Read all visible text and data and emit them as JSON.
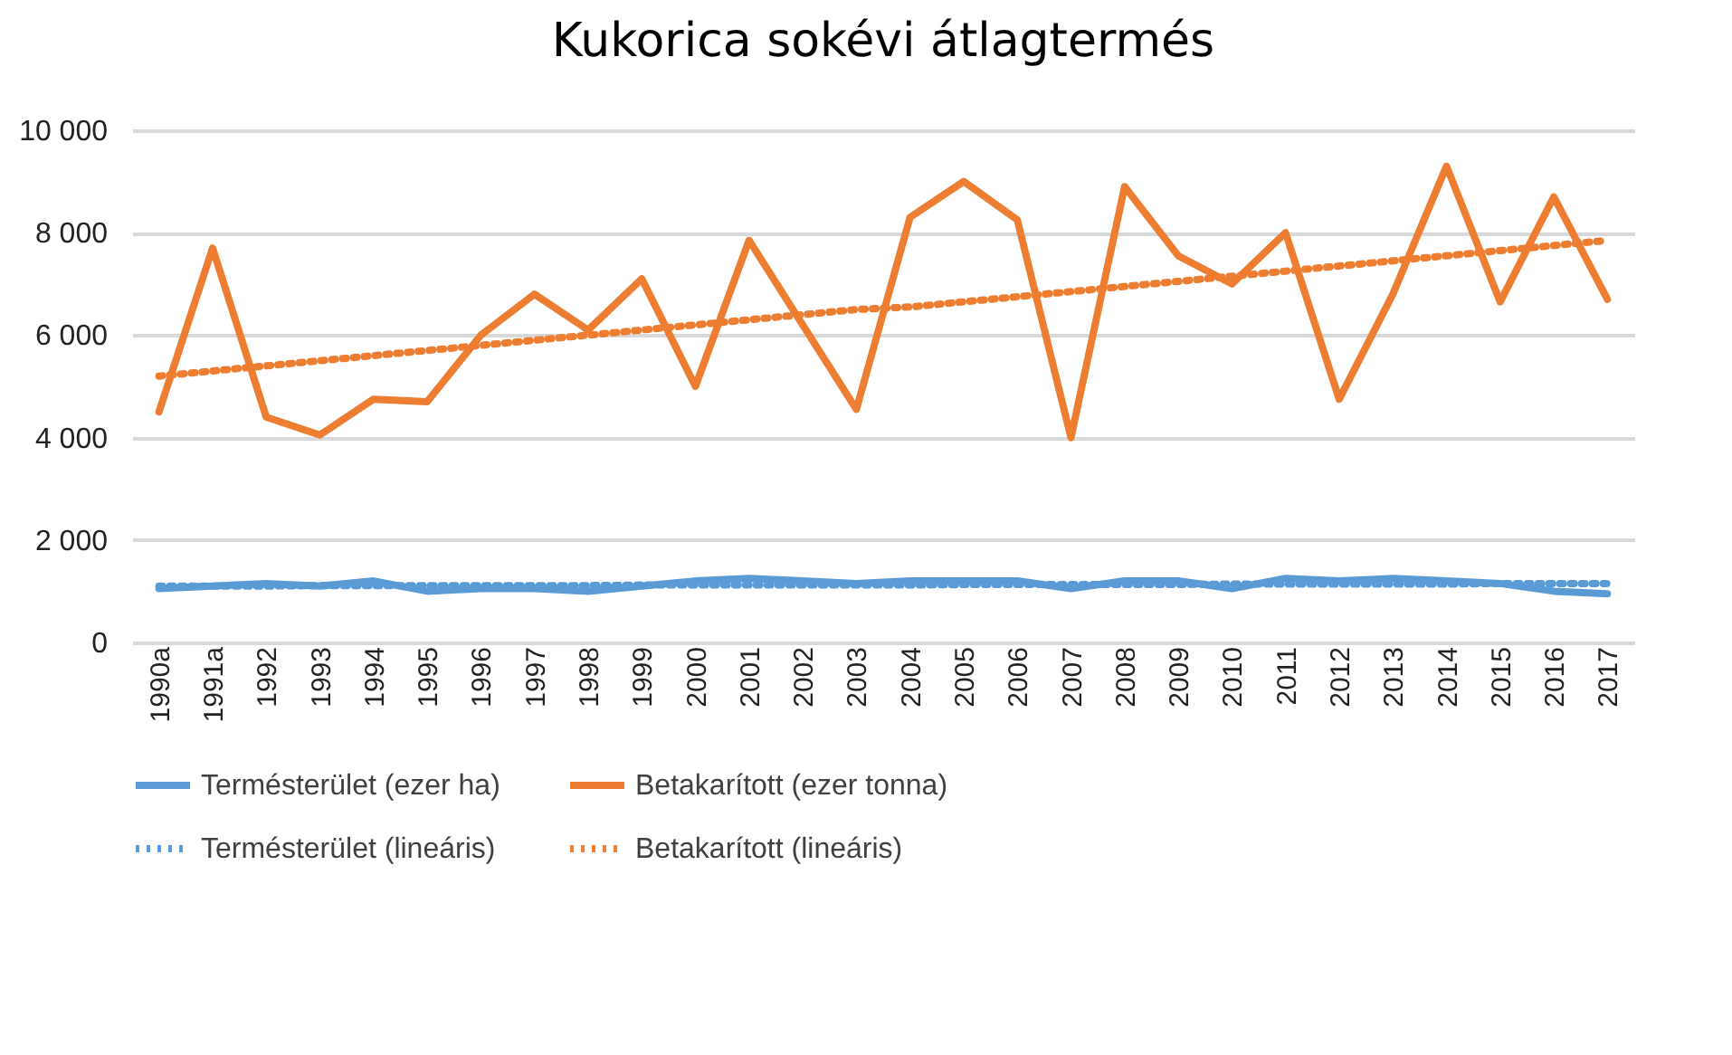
{
  "chart_data": {
    "type": "line",
    "title": "Kukorica sokévi átlagtermés",
    "categories": [
      "1990a",
      "1991a",
      "1992",
      "1993",
      "1994",
      "1995",
      "1996",
      "1997",
      "1998",
      "1999",
      "2000",
      "2001",
      "2002",
      "2003",
      "2004",
      "2005",
      "2006",
      "2007",
      "2008",
      "2009",
      "2010",
      "2011",
      "2012",
      "2013",
      "2014",
      "2015",
      "2016",
      "2017"
    ],
    "series": [
      {
        "name": "Termésterület (ezer ha)",
        "color": "#5b9bd5",
        "line_style": "solid",
        "values": [
          1050,
          1100,
          1150,
          1100,
          1200,
          1000,
          1050,
          1050,
          1000,
          1100,
          1200,
          1250,
          1200,
          1150,
          1200,
          1200,
          1200,
          1050,
          1200,
          1200,
          1050,
          1250,
          1200,
          1250,
          1200,
          1150,
          1000,
          950
        ]
      },
      {
        "name": "Betakarított (ezer tonna)",
        "color": "#ed7d31",
        "line_style": "solid",
        "values": [
          4500,
          7700,
          4400,
          4050,
          4750,
          4700,
          6000,
          6800,
          6100,
          7100,
          5000,
          7850,
          6200,
          4550,
          8300,
          9000,
          8250,
          4000,
          8900,
          7550,
          7000,
          8000,
          4750,
          6800,
          9300,
          6650,
          8700,
          6700
        ]
      },
      {
        "name": "Termésterület (lineáris)",
        "color": "#5b9bd5",
        "line_style": "dotted",
        "values": [
          1100,
          1100,
          1100,
          1110,
          1110,
          1110,
          1110,
          1110,
          1110,
          1120,
          1120,
          1120,
          1120,
          1120,
          1120,
          1130,
          1130,
          1130,
          1130,
          1130,
          1140,
          1140,
          1140,
          1140,
          1140,
          1150,
          1150,
          1150
        ]
      },
      {
        "name": "Betakarított (lineáris)",
        "color": "#ed7d31",
        "line_style": "dotted",
        "values": [
          5200,
          5300,
          5400,
          5500,
          5600,
          5700,
          5800,
          5900,
          6000,
          6100,
          6200,
          6300,
          6400,
          6500,
          6550,
          6650,
          6750,
          6850,
          6950,
          7050,
          7150,
          7250,
          7350,
          7450,
          7550,
          7650,
          7750,
          7850
        ]
      }
    ],
    "ylim": [
      0,
      10000
    ],
    "yticks": [
      0,
      {
        "value": 2000,
        "label": "2 000"
      },
      {
        "value": 4000,
        "label": "4 000"
      },
      {
        "value": 6000,
        "label": "6 000"
      },
      {
        "value": 8000,
        "label": "8 000"
      },
      {
        "value": 10000,
        "label": "10 000"
      }
    ],
    "grid": "y",
    "legend": "bottom",
    "marker": "none"
  }
}
